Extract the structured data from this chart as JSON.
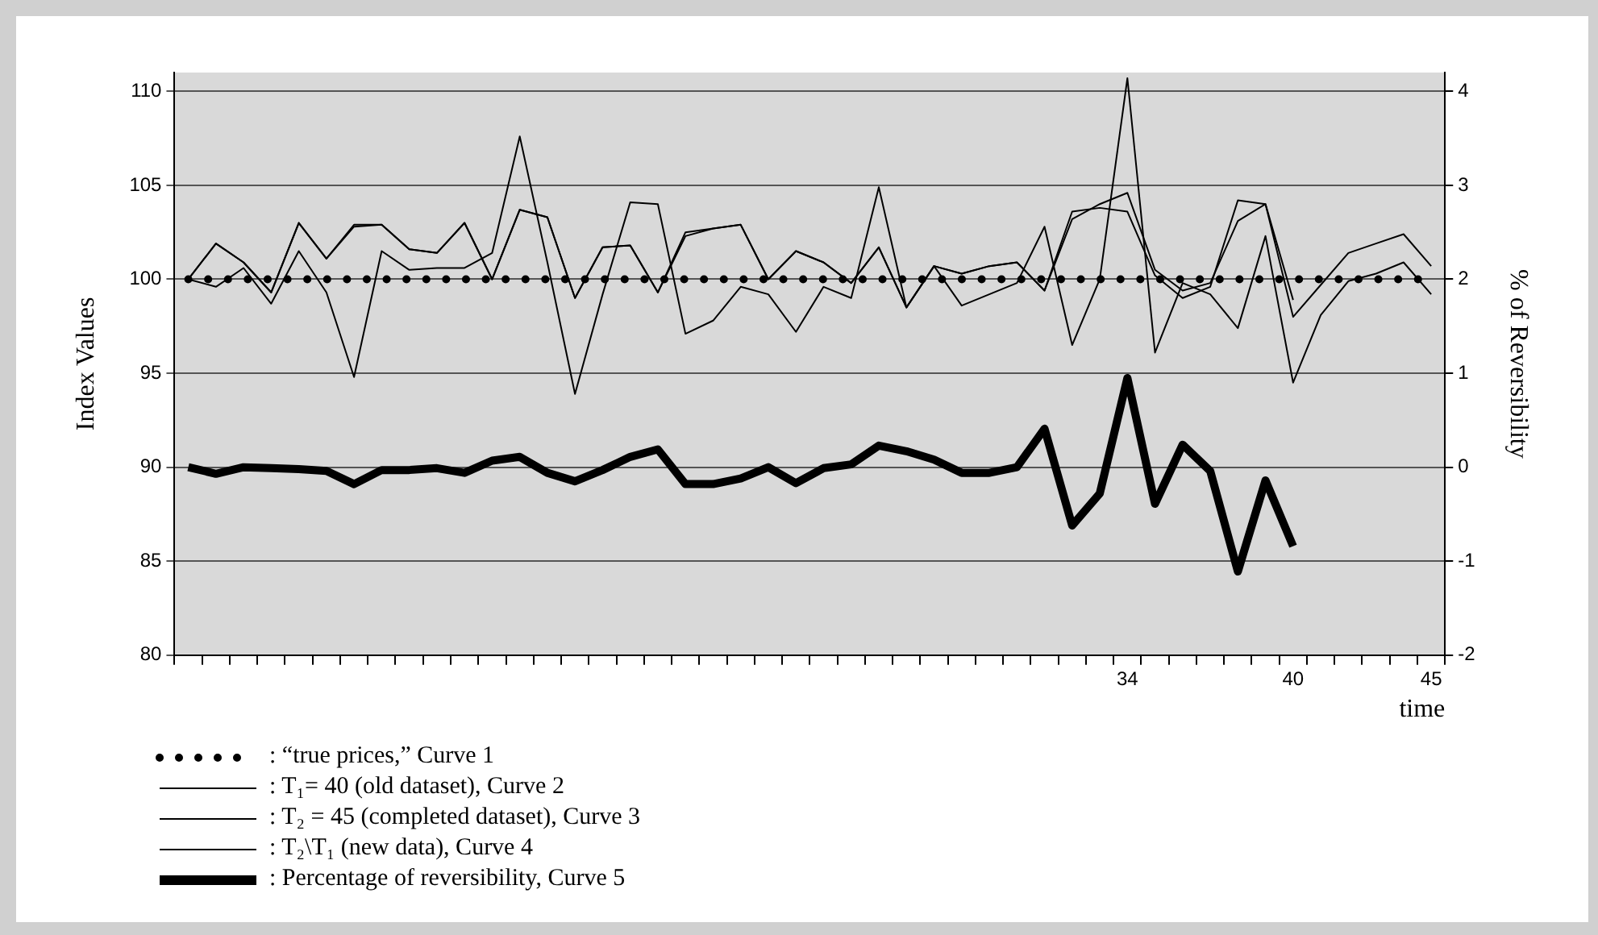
{
  "chart_data": {
    "type": "line",
    "xlabel": "time",
    "ylabel": "Index Values",
    "y2label": "% of Reversibility",
    "categories": [
      null,
      null,
      null,
      null,
      null,
      null,
      null,
      null,
      null,
      null,
      null,
      null,
      null,
      null,
      null,
      null,
      null,
      null,
      null,
      null,
      null,
      null,
      null,
      null,
      null,
      null,
      null,
      null,
      null,
      null,
      null,
      null,
      null,
      null,
      "34",
      null,
      null,
      null,
      null,
      null,
      "40",
      null,
      null,
      null,
      null,
      "45"
    ],
    "ylim": [
      80,
      111
    ],
    "yticks": [
      80,
      85,
      90,
      95,
      100,
      105,
      110
    ],
    "y2lim": [
      -2,
      4.2
    ],
    "y2ticks": [
      -2,
      -1,
      0,
      1,
      2,
      3,
      4
    ],
    "grid": "y",
    "legend": "bottom left",
    "marker": "none",
    "series": [
      {
        "name": ": “true prices,” Curve 1",
        "color": "#000000",
        "line_style": "dotted",
        "values": [
          100,
          100,
          100,
          100,
          100,
          100,
          100,
          100,
          100,
          100,
          100,
          100,
          100,
          100,
          100,
          100,
          100,
          100,
          100,
          100,
          100,
          100,
          100,
          100,
          100,
          100,
          100,
          100,
          100,
          100,
          100,
          100,
          100,
          100,
          100,
          100,
          100,
          100,
          100,
          100,
          100,
          100,
          100,
          100,
          100,
          100
        ]
      },
      {
        "name": ": T₁= 40 (old dataset), Curve 2",
        "color": "#000000",
        "line_style": "solid",
        "values": [
          100,
          101.9,
          100.9,
          99.3,
          103.0,
          101.1,
          102.8,
          102.9,
          101.6,
          101.4,
          103.0,
          100,
          103.7,
          103.3,
          99.0,
          101.7,
          101.8,
          99.3,
          102.3,
          102.7,
          102.9,
          100,
          101.5,
          100.9,
          99.8,
          101.7,
          98.5,
          100.7,
          100.3,
          100.7,
          100.9,
          99.4,
          103.2,
          104.0,
          104.6,
          100.5,
          99.4,
          99.8,
          103.1,
          104.0,
          98.9,
          null,
          null,
          null,
          null,
          null
        ]
      },
      {
        "name": ": T₂ = 45 (completed dataset), Curve 3",
        "color": "#000000",
        "line_style": "solid",
        "values": [
          100,
          101.9,
          100.9,
          99.3,
          103.0,
          101.1,
          102.9,
          102.9,
          101.6,
          101.4,
          103.0,
          100,
          103.7,
          103.3,
          99.0,
          101.7,
          101.8,
          99.3,
          102.5,
          102.7,
          102.9,
          100,
          101.5,
          100.9,
          99.8,
          101.7,
          98.5,
          100.7,
          100.3,
          100.7,
          100.9,
          99.4,
          103.6,
          103.8,
          103.6,
          100.2,
          99.0,
          99.6,
          104.2,
          104.0,
          98.0,
          99.7,
          101.4,
          101.9,
          102.4,
          100.7
        ]
      },
      {
        "name": ": T₂\\T₁ (new data), Curve 4",
        "color": "#000000",
        "line_style": "solid",
        "values": [
          100,
          99.6,
          100.6,
          98.7,
          101.5,
          99.3,
          94.8,
          101.5,
          100.5,
          100.6,
          100.6,
          101.4,
          107.6,
          100.9,
          93.9,
          99.2,
          104.1,
          104.0,
          97.1,
          97.8,
          99.6,
          99.2,
          97.2,
          99.6,
          99.0,
          104.9,
          98.5,
          100.7,
          98.6,
          99.2,
          99.8,
          102.8,
          96.5,
          100,
          110.7,
          96.1,
          99.8,
          99.2,
          97.4,
          102.3,
          94.5,
          98.1,
          99.9,
          100.3,
          100.9,
          99.2
        ]
      },
      {
        "name": ": Percentage of reversibility, Curve 5",
        "color": "#000000",
        "line_style": "solid",
        "axis": "y2",
        "values": [
          0,
          -0.07,
          0,
          -0.01,
          -0.02,
          -0.04,
          -0.18,
          -0.03,
          -0.03,
          -0.01,
          -0.06,
          0.07,
          0.11,
          -0.06,
          -0.15,
          -0.03,
          0.11,
          0.19,
          -0.18,
          -0.18,
          -0.12,
          0,
          -0.17,
          -0.01,
          0.03,
          0.23,
          0.17,
          0.08,
          -0.06,
          -0.06,
          0,
          0.41,
          -0.62,
          -0.28,
          0.95,
          -0.39,
          0.24,
          -0.04,
          -1.11,
          -0.14,
          -0.84,
          null,
          null,
          null,
          null,
          null
        ]
      }
    ]
  }
}
